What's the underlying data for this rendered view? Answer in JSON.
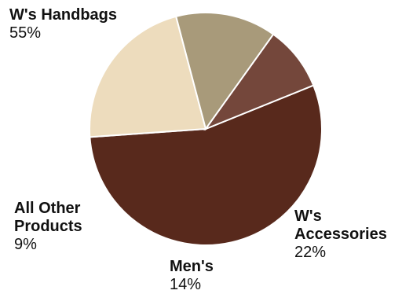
{
  "chart_data": {
    "type": "pie",
    "start_angle_deg": 68,
    "direction": "clockwise",
    "slices": [
      {
        "label_lines": [
          "W's Handbags"
        ],
        "value_label": "55%",
        "value": 55,
        "color": "#58291c"
      },
      {
        "label_lines": [
          "W's",
          "Accessories"
        ],
        "value_label": "22%",
        "value": 22,
        "color": "#eddcbd"
      },
      {
        "label_lines": [
          "Men's"
        ],
        "value_label": "14%",
        "value": 14,
        "color": "#a89a7a"
      },
      {
        "label_lines": [
          "All Other",
          "Products"
        ],
        "value_label": "9%",
        "value": 9,
        "color": "#74473b"
      }
    ]
  }
}
